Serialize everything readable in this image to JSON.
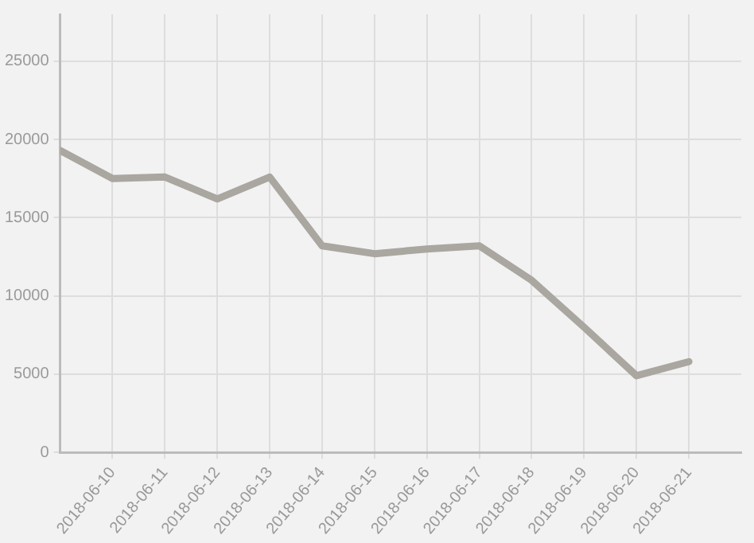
{
  "chart_data": {
    "type": "line",
    "x": [
      "2018-06-09",
      "2018-06-10",
      "2018-06-11",
      "2018-06-12",
      "2018-06-13",
      "2018-06-14",
      "2018-06-15",
      "2018-06-16",
      "2018-06-17",
      "2018-06-18",
      "2018-06-19",
      "2018-06-20",
      "2018-06-21"
    ],
    "series": [
      {
        "color": "#aaa6a0",
        "values": [
          19300,
          17500,
          17600,
          16200,
          17600,
          13200,
          12700,
          13000,
          13200,
          11000,
          8000,
          4900,
          5800
        ]
      }
    ],
    "xlim": [
      "2018-06-09",
      "2018-06-22"
    ],
    "xticks": [
      "2018-06-10",
      "2018-06-11",
      "2018-06-12",
      "2018-06-13",
      "2018-06-14",
      "2018-06-15",
      "2018-06-16",
      "2018-06-17",
      "2018-06-18",
      "2018-06-19",
      "2018-06-20",
      "2018-06-21"
    ],
    "ylim": [
      0,
      28000
    ],
    "yticks": [
      0,
      5000,
      10000,
      15000,
      20000,
      25000
    ],
    "grid": true,
    "legend": false,
    "marker": "none",
    "line_style": "solid"
  }
}
